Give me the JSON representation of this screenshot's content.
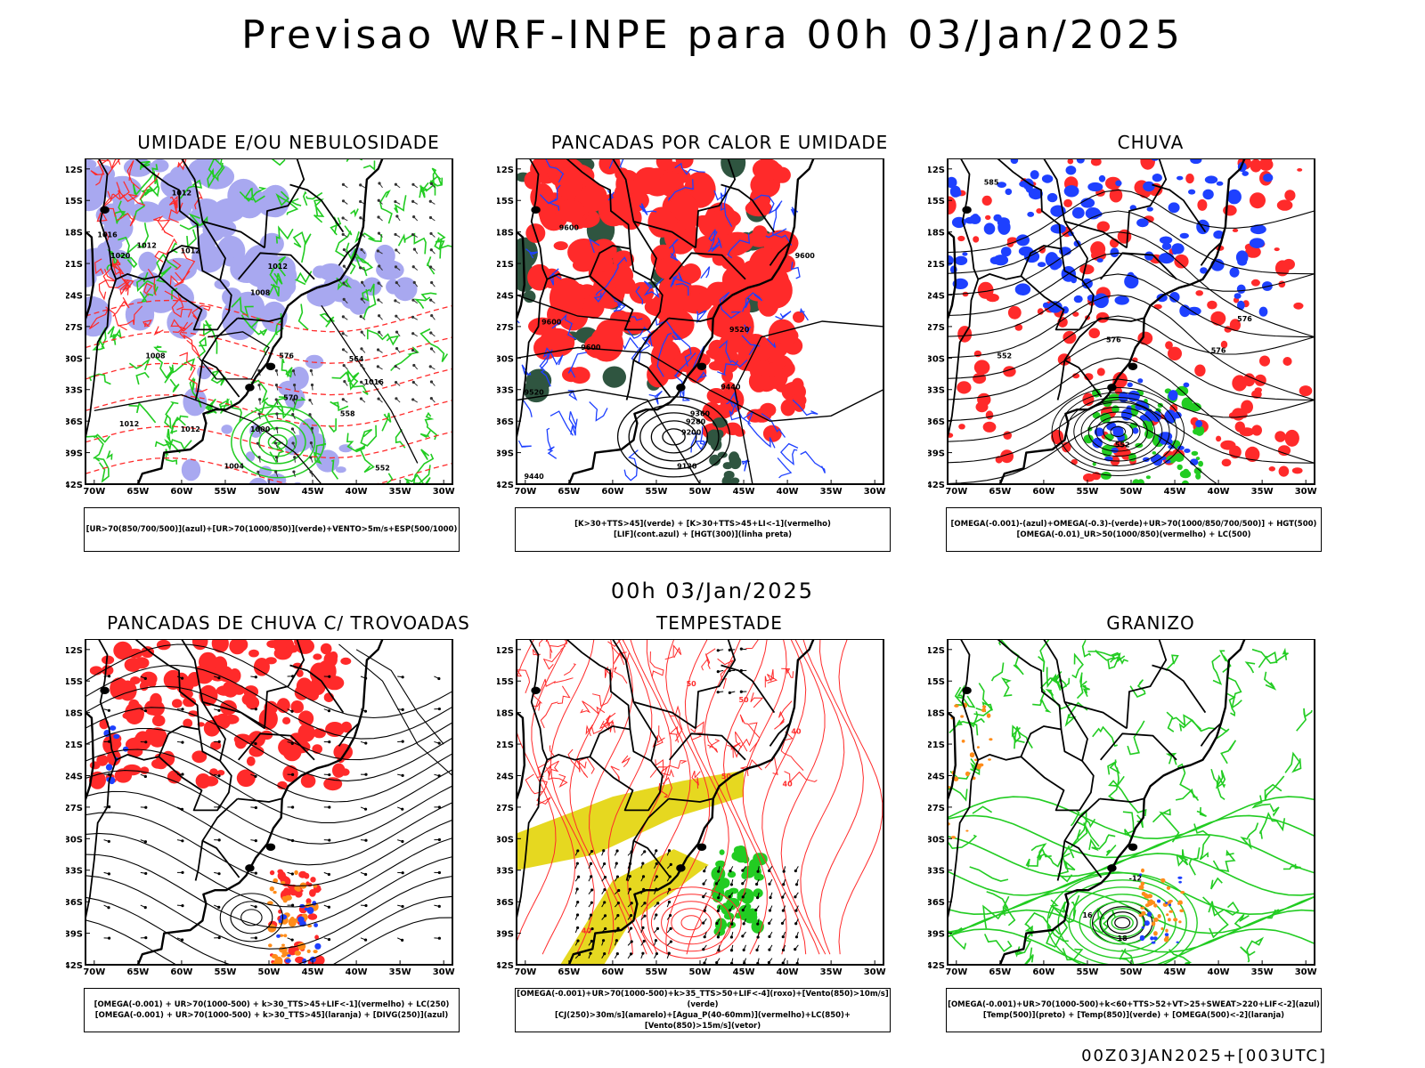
{
  "header": {
    "title": "Previsao WRF-INPE  para 00h 03/Jan/2025",
    "mid_title": "00h 03/Jan/2025",
    "footer_stamp": "00Z03JAN2025+[003UTC]"
  },
  "axes": {
    "y_ticks": [
      "12S",
      "15S",
      "18S",
      "21S",
      "24S",
      "27S",
      "30S",
      "33S",
      "36S",
      "39S",
      "42S"
    ],
    "x_ticks": [
      "70W",
      "65W",
      "60W",
      "55W",
      "50W",
      "45W",
      "40W",
      "35W",
      "30W"
    ],
    "lat_range": [
      -42,
      -11
    ],
    "lon_range": [
      -71,
      -29
    ]
  },
  "colors": {
    "red": "#ff2a2a",
    "green": "#22cc22",
    "blue": "#1e40ff",
    "lavender": "#a8a8f0",
    "dark_green": "#2f5540",
    "yellow": "#e6d820",
    "orange": "#ff8c1a",
    "black": "#000000"
  },
  "panels": [
    {
      "title": "UMIDADE E/OU NEBULOSIDADE",
      "legend_line1": "[UR>70(850/700/500)](azul)+[UR>70(1000/850)](verde)+VENTO>5m/s+ESP(500/1000)",
      "legend_line2": "",
      "labels": [
        "1012",
        "1012",
        "1016",
        "1020",
        "1012",
        "1008",
        "1012",
        "1004",
        "1000",
        "1016",
        "1012",
        "1008",
        "1012",
        "576",
        "570",
        "564",
        "558",
        "552"
      ]
    },
    {
      "title": "PANCADAS POR CALOR E UMIDADE",
      "legend_line1": "[K>30+TTS>45](verde) + [K>30+TTS>45+LI<-1](vermelho)",
      "legend_line2": "[LIF](cont.azul) + [HGT(300)](linha preta)",
      "labels": [
        "9600",
        "9600",
        "9600",
        "9520",
        "9440",
        "9360",
        "9280",
        "9200",
        "9120",
        "9520",
        "9440",
        "9600"
      ]
    },
    {
      "title": "CHUVA",
      "legend_line1": "[OMEGA(-0.001)-(azul)+OMEGA(-0.3)-(verde)+UR>70(1000/850/700/500)] + HGT(500)",
      "legend_line2": "[OMEGA(-0.01)_UR>50(1000/850)(vermelho) + LC(500)",
      "labels": [
        "585",
        "576",
        "576",
        "576",
        "552",
        "552"
      ]
    },
    {
      "title": "PANCADAS DE CHUVA C/ TROVOADAS",
      "legend_line1": "[OMEGA(-0.001) + UR>70(1000-500) + k>30_TTS>45+LIF<-1](vermelho) + LC(250)",
      "legend_line2": "[OMEGA(-0.001) + UR>70(1000-500) + k>30_TTS>45](laranja) + [DIVG(250)](azul)",
      "labels": []
    },
    {
      "title": "TEMPESTADE",
      "legend_line1": "[OMEGA(-0.001)+UR>70(1000-500)+k>35_TTS>50+LIF<-4](roxo)+[Vento(850)>10m/s](verde)",
      "legend_line2": "[CJ(250)>30m/s](amarelo)+[Agua_P(40-60mm)](vermelho)+LC(850)+[Vento(850)>15m/s](vetor)",
      "labels": [
        "50",
        "50",
        "50",
        "40",
        "40",
        "40"
      ]
    },
    {
      "title": "GRANIZO",
      "legend_line1": "[OMEGA(-0.001)+UR>70(1000-500)+k<60+TTS>52+VT>25+SWEAT>220+LIF<-2](azul)",
      "legend_line2": "[Temp(500)](preto) + [Temp(850)](verde) + [OMEGA(500)<-2](laranja)",
      "labels": [
        "-12",
        "16",
        "18"
      ]
    }
  ]
}
